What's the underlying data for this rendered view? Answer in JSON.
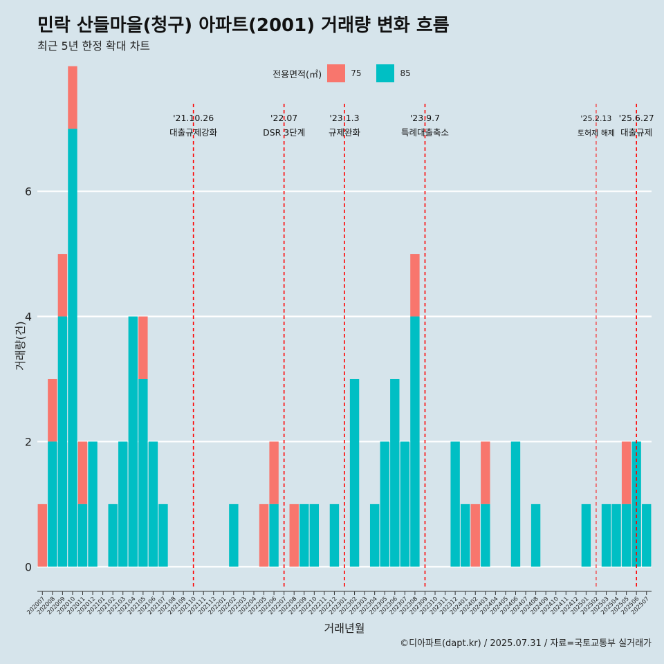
{
  "title": "민락 산들마을(청구) 아파트(2001) 거래량 변화 흐름",
  "subtitle": "최근 5년 한정 확대 차트",
  "caption": "©디아파트(dapt.kr) / 2025.07.31 / 자료=국토교통부 실거래가",
  "colors": {
    "s75": "#f8766d",
    "s85": "#00bfc4",
    "background": "#d6e4eb",
    "event_line": "#ff0000"
  },
  "chart_data": {
    "type": "bar",
    "xlabel": "거래년월",
    "ylabel": "거래량(건)",
    "ylim": [
      -0.35,
      7.4
    ],
    "yticks": [
      0,
      2,
      4,
      6
    ],
    "legend": {
      "title": "전용면적(㎡)",
      "placement": "top"
    },
    "grid": true,
    "categories": [
      "202007",
      "202008",
      "202009",
      "202010",
      "202011",
      "202012",
      "202101",
      "202102",
      "202103",
      "202104",
      "202105",
      "202106",
      "202107",
      "202108",
      "202109",
      "202110",
      "202111",
      "202112",
      "202201",
      "202202",
      "202203",
      "202204",
      "202205",
      "202206",
      "202207",
      "202208",
      "202209",
      "202210",
      "202211",
      "202212",
      "202301",
      "202302",
      "202303",
      "202304",
      "202305",
      "202306",
      "202307",
      "202308",
      "202309",
      "202310",
      "202311",
      "202312",
      "202401",
      "202402",
      "202403",
      "202404",
      "202405",
      "202406",
      "202407",
      "202408",
      "202409",
      "202410",
      "202411",
      "202412",
      "202501",
      "202502",
      "202503",
      "202504",
      "202505",
      "202506",
      "202507"
    ],
    "series": [
      {
        "name": "75",
        "values": [
          1,
          1,
          1,
          1,
          1,
          0,
          0,
          0,
          0,
          0,
          1,
          0,
          0,
          0,
          0,
          0,
          0,
          0,
          0,
          0,
          0,
          0,
          1,
          1,
          0,
          1,
          0,
          0,
          0,
          0,
          0,
          0,
          0,
          0,
          0,
          0,
          0,
          1,
          0,
          0,
          0,
          0,
          0,
          1,
          1,
          0,
          0,
          0,
          0,
          0,
          0,
          0,
          0,
          0,
          0,
          0,
          0,
          0,
          1,
          0,
          0
        ]
      },
      {
        "name": "85",
        "values": [
          0,
          2,
          4,
          7,
          1,
          2,
          0,
          1,
          2,
          4,
          3,
          2,
          1,
          0,
          0,
          0,
          0,
          0,
          0,
          1,
          0,
          0,
          0,
          1,
          0,
          0,
          1,
          1,
          0,
          1,
          0,
          3,
          0,
          1,
          2,
          3,
          2,
          4,
          0,
          0,
          0,
          2,
          1,
          0,
          1,
          0,
          0,
          2,
          0,
          1,
          0,
          0,
          0,
          0,
          1,
          0,
          1,
          1,
          1,
          2,
          1
        ]
      }
    ],
    "events": [
      {
        "month": "202110",
        "date": "'21.10.26",
        "label": "대출규제강화",
        "style": "dashed"
      },
      {
        "month": "202207",
        "date": "'22.07",
        "label": "DSR 3단계",
        "style": "dashed"
      },
      {
        "month": "202301",
        "date": "'23.1.3",
        "label": "규제완화",
        "style": "dashed"
      },
      {
        "month": "202309",
        "date": "'23.9.7",
        "label": "특례대출축소",
        "style": "dashed"
      },
      {
        "month": "202502",
        "date": "'25.2.13",
        "label": "토허제 해제",
        "style": "thin"
      },
      {
        "month": "202506",
        "date": "'25.6.27",
        "label": "대출규제",
        "style": "dashed"
      }
    ]
  }
}
